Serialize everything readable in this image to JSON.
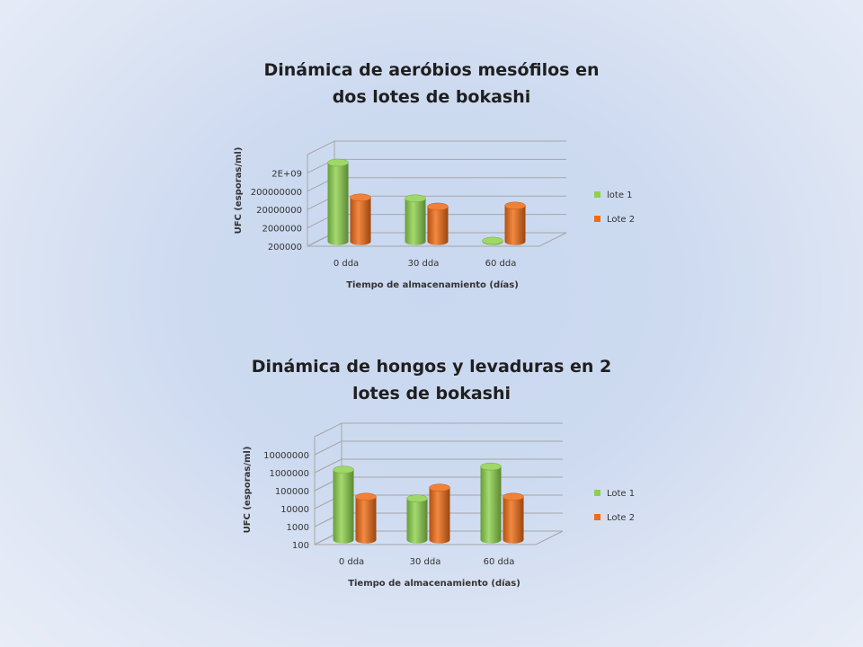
{
  "colors": {
    "series1": "#8dd14c",
    "series2": "#ef6b14",
    "grid": "#a6a6a6"
  },
  "chart_data": [
    {
      "type": "bar",
      "title_lines": [
        "Dinámica de aeróbios mesófilos en",
        "dos lotes de bokashi"
      ],
      "xlabel": "Tiempo de almacenamiento (días)",
      "ylabel": "UFC (esporas/ml)",
      "categories": [
        "0 dda",
        "30 dda",
        "60 dda"
      ],
      "yticks": [
        "200000",
        "2000000",
        "20000000",
        "200000000",
        "2E+09"
      ],
      "ylim": [
        200000,
        20000000000
      ],
      "scale": "log",
      "legend_position": "right",
      "series": [
        {
          "name": "lote 1",
          "values": [
            4000000000,
            45000000,
            220000
          ]
        },
        {
          "name": "Lote 2",
          "values": [
            50000000,
            16000000,
            18000000
          ]
        }
      ]
    },
    {
      "type": "bar",
      "title_lines": [
        "Dinámica de hongos y levaduras en 2",
        "lotes de bokashi"
      ],
      "xlabel": "Tiempo de almacenamiento (días)",
      "ylabel": "UFC (esporas/ml)",
      "categories": [
        "0 dda",
        "30 dda",
        "60 dda"
      ],
      "yticks": [
        "100",
        "1000",
        "10000",
        "100000",
        "1000000",
        "10000000"
      ],
      "ylim": [
        100,
        100000000
      ],
      "scale": "log",
      "legend_position": "right",
      "series": [
        {
          "name": "Lote 1",
          "values": [
            800000,
            20000,
            1200000
          ]
        },
        {
          "name": "Lote 2",
          "values": [
            25000,
            80000,
            25000
          ]
        }
      ]
    }
  ]
}
